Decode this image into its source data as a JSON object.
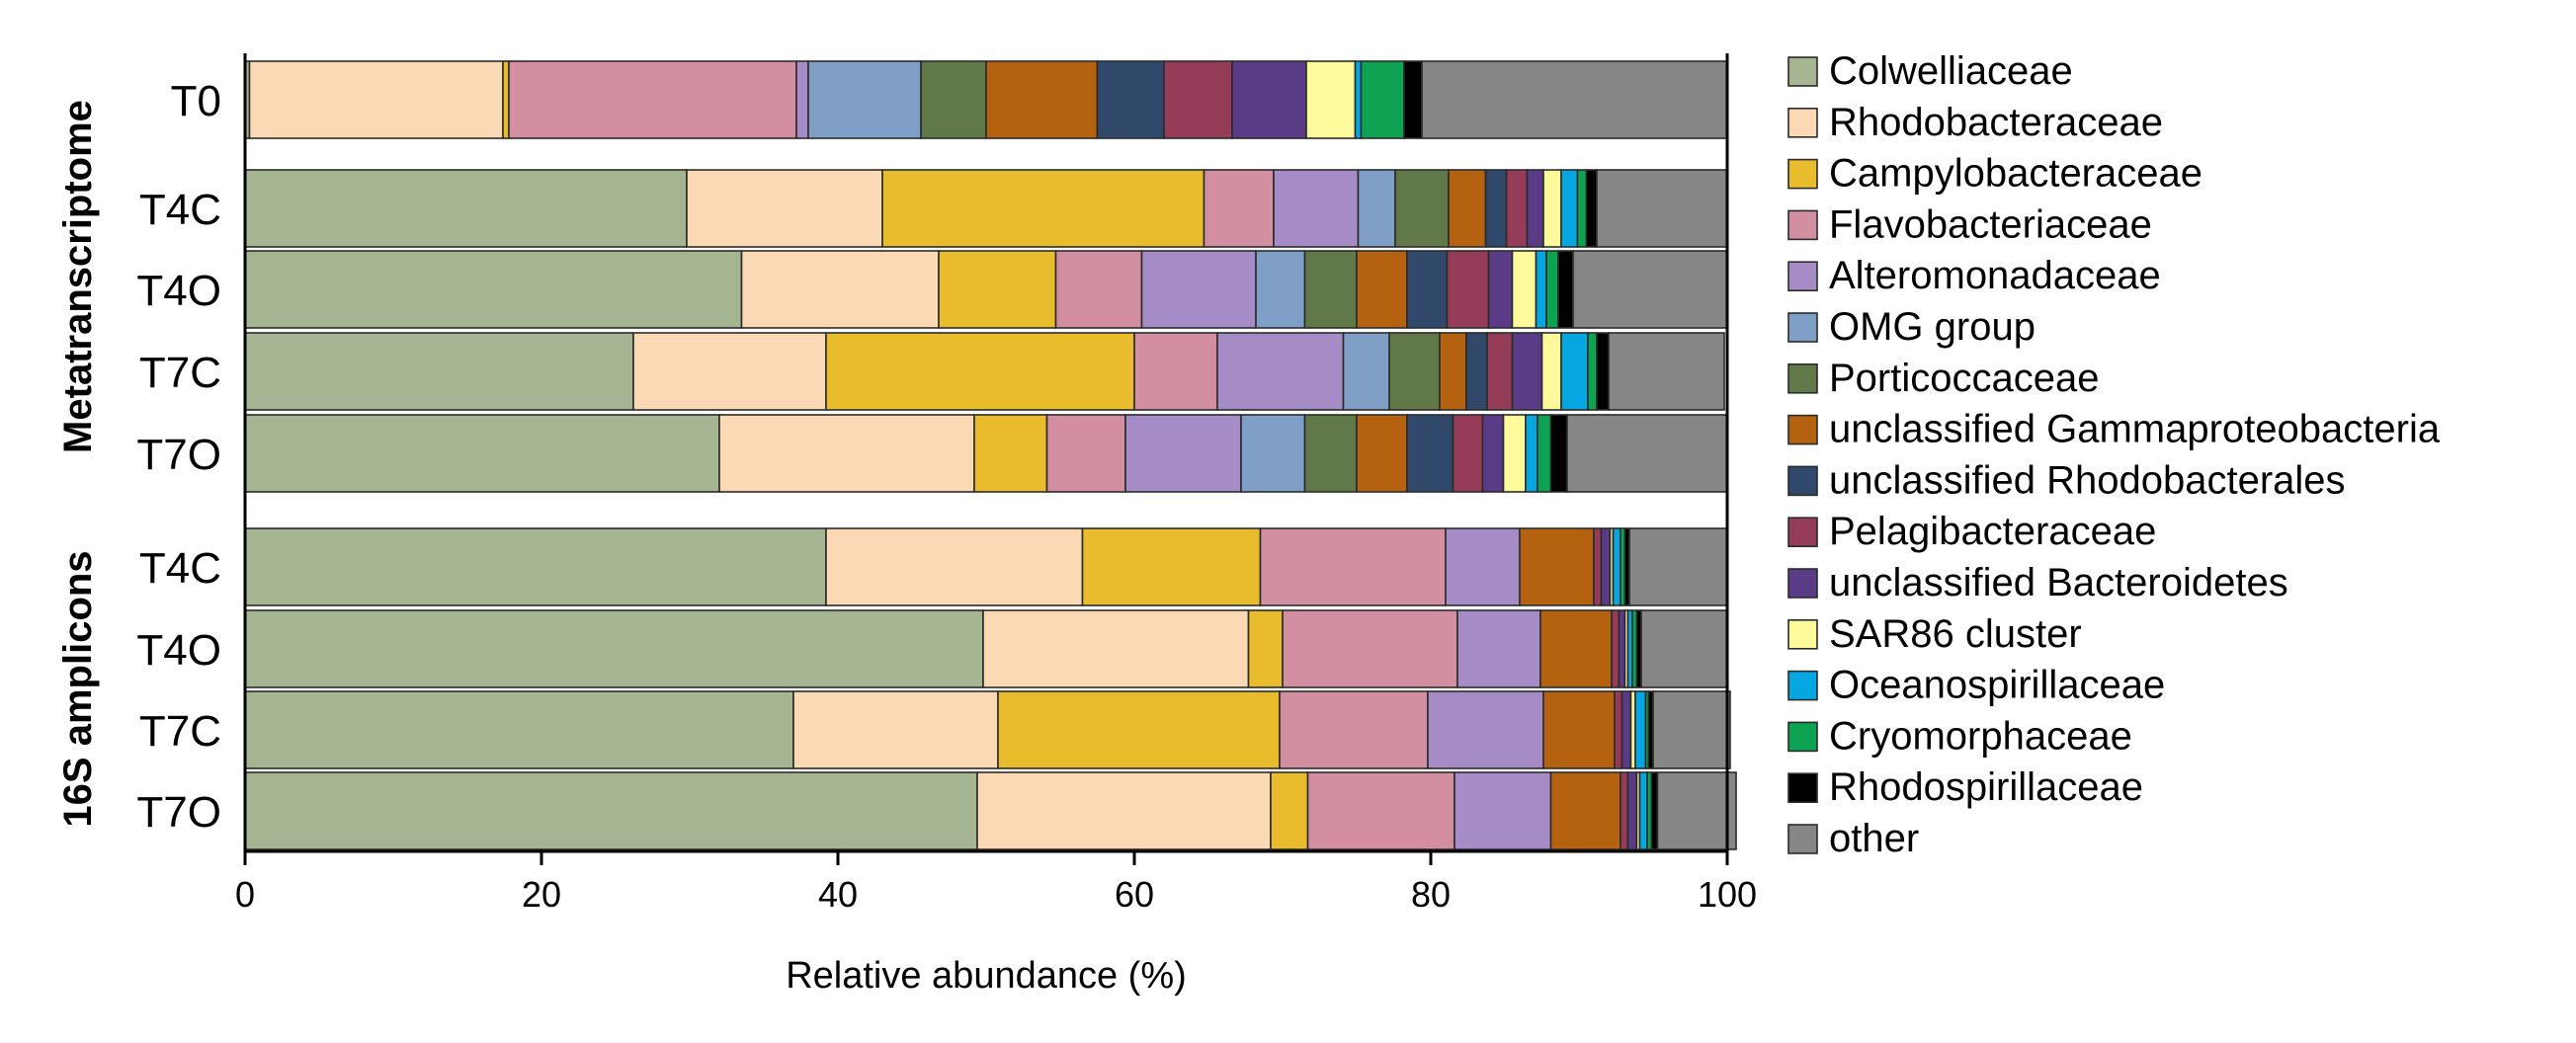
{
  "chart_data": {
    "type": "bar",
    "orientation": "horizontal",
    "stacked": true,
    "xlabel": "Relative abundance (%)",
    "xlim": [
      0,
      100
    ],
    "xticks": [
      0,
      20,
      40,
      60,
      80,
      100
    ],
    "xtick_labels": [
      "0",
      "20",
      "40",
      "60",
      "80",
      "100"
    ],
    "legend_position": "right",
    "groups": [
      {
        "label": "Metatranscriptome",
        "rows": [
          "T0",
          "T4C",
          "T4O",
          "T7C",
          "T7O"
        ]
      },
      {
        "label": "16S amplicons",
        "rows": [
          "T4C",
          "T4O",
          "T7C",
          "T7O"
        ]
      }
    ],
    "series": [
      {
        "name": "Colwelliaceae",
        "color": "#a5b592"
      },
      {
        "name": "Rhodobacteraceae",
        "color": "#fbd9b5"
      },
      {
        "name": "Campylobacteraceae",
        "color": "#e8bc2c"
      },
      {
        "name": "Flavobacteriaceae",
        "color": "#d28fa1"
      },
      {
        "name": "Alteromonadaceae",
        "color": "#a58cc6"
      },
      {
        "name": "OMG group",
        "color": "#7f9fc6"
      },
      {
        "name": "Porticoccaceae",
        "color": "#617948"
      },
      {
        "name": "unclassified Gammaproteobacteria",
        "color": "#b4620f"
      },
      {
        "name": "unclassified Rhodobacterales",
        "color": "#30486a"
      },
      {
        "name": "Pelagibacteraceae",
        "color": "#943c58"
      },
      {
        "name": "unclassified Bacteroidetes",
        "color": "#5a3c86"
      },
      {
        "name": "SAR86 cluster",
        "color": "#fdfa9c"
      },
      {
        "name": "Oceanospirillaceae",
        "color": "#06a6e0"
      },
      {
        "name": "Cryomorphaceae",
        "color": "#0ea352"
      },
      {
        "name": "Rhodospirillaceae",
        "color": "#000000"
      },
      {
        "name": "other",
        "color": "#868686"
      }
    ],
    "rows": [
      {
        "group": 0,
        "label": "T0",
        "values": [
          0.3,
          17.1,
          0.4,
          19.4,
          0.8,
          7.6,
          4.4,
          7.5,
          4.5,
          4.6,
          5.0,
          3.3,
          0.4,
          2.9,
          1.2,
          20.6
        ]
      },
      {
        "group": 0,
        "label": "T4C",
        "values": [
          29.8,
          13.2,
          21.7,
          4.7,
          5.7,
          2.5,
          3.6,
          2.5,
          1.4,
          1.4,
          1.1,
          1.2,
          1.1,
          0.6,
          0.7,
          8.8
        ]
      },
      {
        "group": 0,
        "label": "T4O",
        "values": [
          33.5,
          13.3,
          7.9,
          5.8,
          7.7,
          3.3,
          3.5,
          3.4,
          2.7,
          2.8,
          1.6,
          1.6,
          0.7,
          0.8,
          1.0,
          10.4
        ]
      },
      {
        "group": 0,
        "label": "T7C",
        "values": [
          26.2,
          13.0,
          20.8,
          5.6,
          8.5,
          3.1,
          3.4,
          1.8,
          1.4,
          1.7,
          2.0,
          1.3,
          1.8,
          0.6,
          0.8,
          7.8
        ]
      },
      {
        "group": 0,
        "label": "T7O",
        "values": [
          32.0,
          17.2,
          4.9,
          5.3,
          7.8,
          4.3,
          3.5,
          3.4,
          3.1,
          2.0,
          1.4,
          1.5,
          0.8,
          0.9,
          1.1,
          10.8
        ]
      },
      {
        "group": 1,
        "label": "T4C",
        "values": [
          39.2,
          17.3,
          12.0,
          12.5,
          5.0,
          0.0,
          0.0,
          5.0,
          0.0,
          0.5,
          0.6,
          0.2,
          0.5,
          0.3,
          0.3,
          6.6
        ]
      },
      {
        "group": 1,
        "label": "T4O",
        "values": [
          49.8,
          17.9,
          2.3,
          11.8,
          5.6,
          0.0,
          0.0,
          4.8,
          0.0,
          0.5,
          0.4,
          0.2,
          0.3,
          0.3,
          0.3,
          5.8
        ]
      },
      {
        "group": 1,
        "label": "T7C",
        "values": [
          37.0,
          13.8,
          19.0,
          10.0,
          7.8,
          0.0,
          0.0,
          4.8,
          0.0,
          0.5,
          0.6,
          0.3,
          0.7,
          0.2,
          0.3,
          5.2
        ]
      },
      {
        "group": 1,
        "label": "T7O",
        "values": [
          49.4,
          19.8,
          2.5,
          9.9,
          6.5,
          0.0,
          0.0,
          4.7,
          0.0,
          0.5,
          0.6,
          0.2,
          0.5,
          0.3,
          0.4,
          5.3
        ]
      }
    ]
  }
}
